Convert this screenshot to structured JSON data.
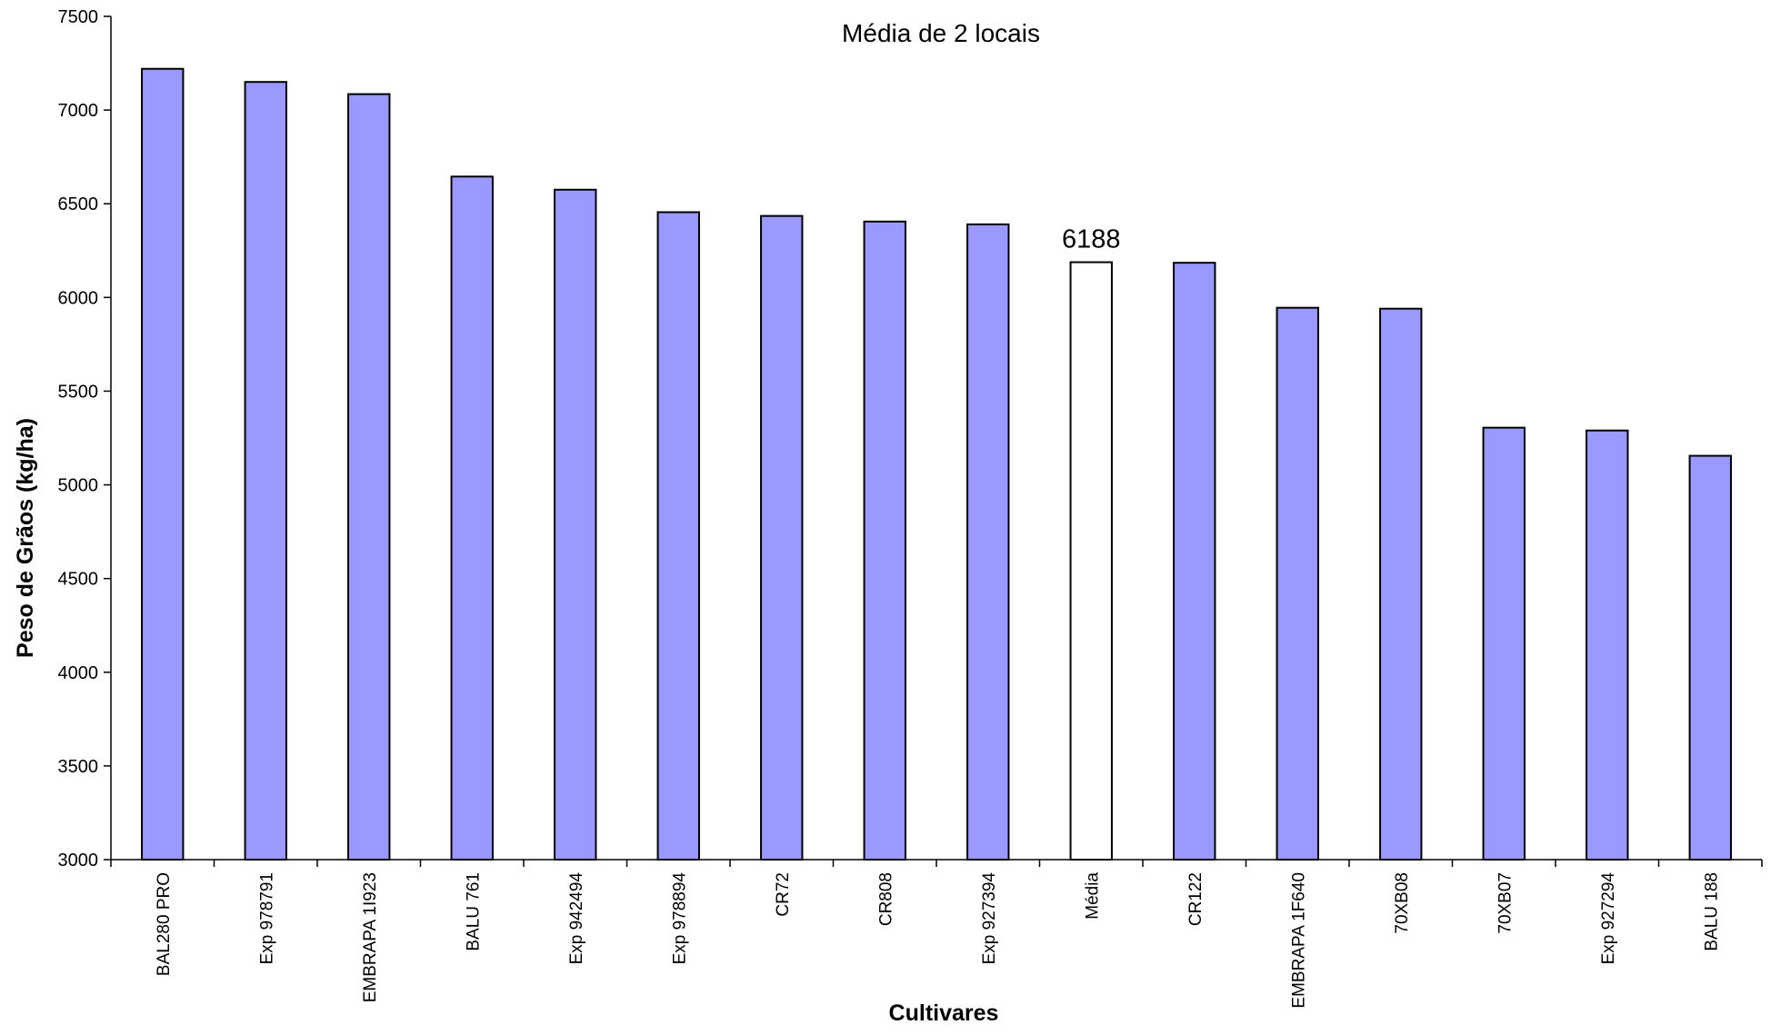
{
  "chart_data": {
    "type": "bar",
    "title": "Média de 2 locais",
    "xlabel": "Cultivares",
    "ylabel": "Peso de Grãos (kg/ha)",
    "ylim": [
      3000,
      7500
    ],
    "yticks": [
      "3000",
      "3500",
      "4000",
      "4500",
      "5000",
      "5500",
      "6000",
      "6500",
      "7000",
      "7500"
    ],
    "grid": false,
    "categories": [
      "BAL280 PRO",
      "Exp 978791",
      "EMBRAPA 1I923",
      "BALU 761",
      "Exp 942494",
      "Exp 978894",
      "CR72",
      "CR808",
      "Exp 927394",
      "Média",
      "CR122",
      "EMBRAPA 1F640",
      "70XB08",
      "70XB07",
      "Exp 927294",
      "BALU 188"
    ],
    "values": [
      7220,
      7150,
      7085,
      6645,
      6575,
      6455,
      6435,
      6405,
      6390,
      6188,
      6185,
      5945,
      5940,
      5305,
      5290,
      5155
    ],
    "highlight_index": 9,
    "data_labels": [
      {
        "index": 9,
        "text": "6188"
      }
    ],
    "colors": {
      "bar_fill": "#9999FF",
      "highlight_fill": "#FFFFFF",
      "bar_stroke": "#000000",
      "axis": "#000000"
    }
  }
}
